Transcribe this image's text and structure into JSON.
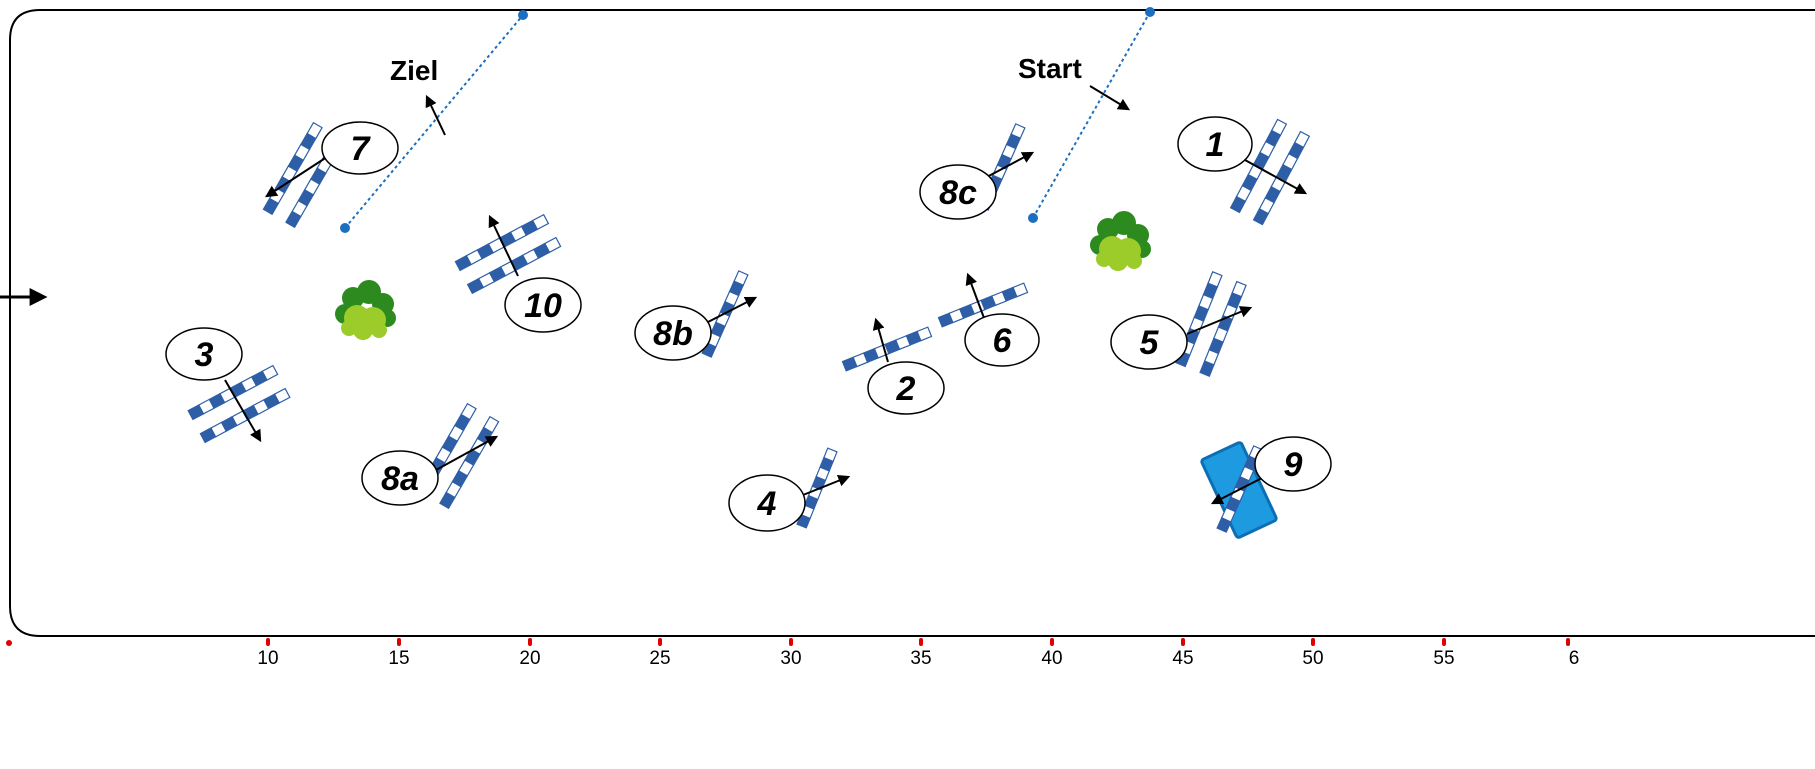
{
  "course": {
    "start_label": "Start",
    "finish_label": "Ziel",
    "obstacles": [
      {
        "label": "1"
      },
      {
        "label": "2"
      },
      {
        "label": "3"
      },
      {
        "label": "4"
      },
      {
        "label": "5"
      },
      {
        "label": "6"
      },
      {
        "label": "7"
      },
      {
        "label": "8a"
      },
      {
        "label": "8b"
      },
      {
        "label": "8c"
      },
      {
        "label": "9"
      },
      {
        "label": "10"
      }
    ]
  },
  "scale": {
    "ticks": [
      "10",
      "15",
      "20",
      "25",
      "30",
      "35",
      "40",
      "45",
      "50",
      "55",
      "6"
    ]
  },
  "colors": {
    "pole_dark": "#2e5fa6",
    "pole_light": "#ffffff",
    "water": "#1e9be0",
    "line_dotted": "#1c6fbf",
    "tree_dark": "#2c8a1e",
    "tree_light": "#9ccc2a",
    "tick_mark": "#e00000"
  }
}
